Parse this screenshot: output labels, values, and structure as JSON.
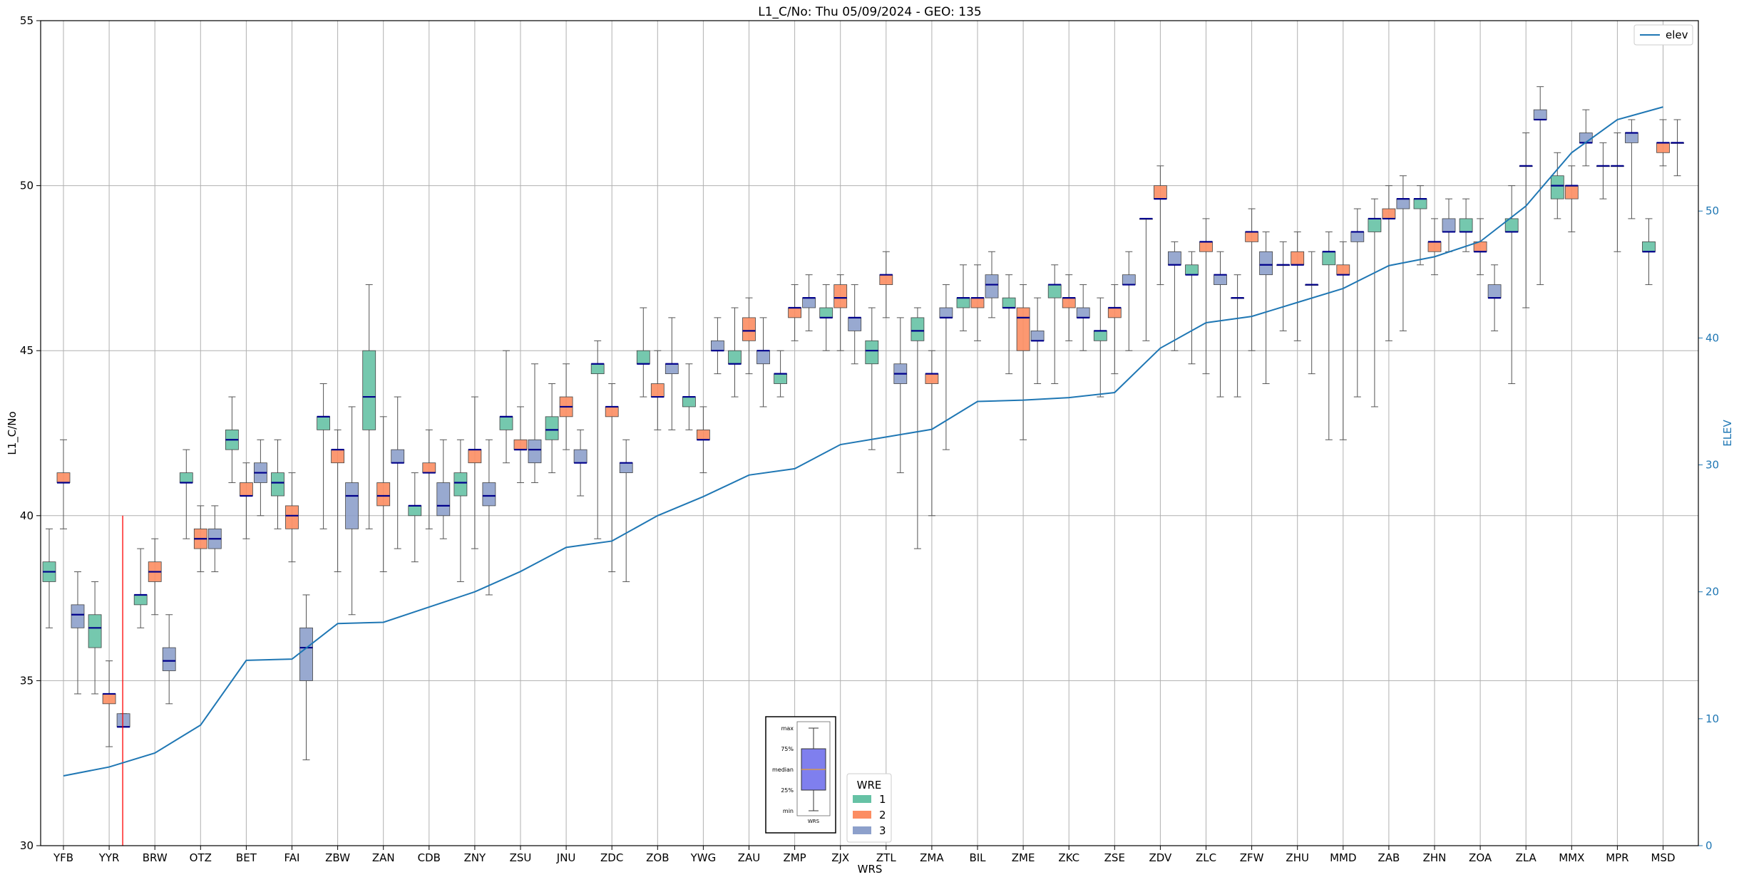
{
  "chart_data": {
    "type": "box",
    "title": "L1_C/No: Thu 05/09/2024 - GEO: 135",
    "xlabel": "WRS",
    "ylabel": "L1_C/No",
    "y2label": "ELEV",
    "ylim": [
      30,
      55
    ],
    "y2lim": [
      0,
      65
    ],
    "yticks": [
      30,
      35,
      40,
      45,
      50,
      55
    ],
    "y2ticks": [
      0,
      10,
      20,
      30,
      40,
      50
    ],
    "grid": true,
    "categories": [
      "YFB",
      "YYR",
      "BRW",
      "OTZ",
      "BET",
      "FAI",
      "ZBW",
      "ZAN",
      "CDB",
      "ZNY",
      "ZSU",
      "JNU",
      "ZDC",
      "ZOB",
      "YWG",
      "ZAU",
      "ZMP",
      "ZJX",
      "ZTL",
      "ZMA",
      "BIL",
      "ZME",
      "ZKC",
      "ZSE",
      "ZDV",
      "ZLC",
      "ZFW",
      "ZHU",
      "MMD",
      "ZAB",
      "ZHN",
      "ZOA",
      "ZLA",
      "MMX",
      "MPR",
      "MSD"
    ],
    "wre_colors": {
      "1": "#66c2a5",
      "2": "#fc8d62",
      "3": "#8da0cb"
    },
    "median_color": "#00008b",
    "line_color": "#1f77b4",
    "boxes": [
      {
        "cat": "YFB",
        "wre": 1,
        "min": 36.6,
        "q1": 38.0,
        "median": 38.3,
        "q3": 38.6,
        "max": 39.6
      },
      {
        "cat": "YFB",
        "wre": 2,
        "min": 39.6,
        "q1": 41.0,
        "median": 41.0,
        "q3": 41.3,
        "max": 42.3
      },
      {
        "cat": "YFB",
        "wre": 3,
        "min": 34.6,
        "q1": 36.6,
        "median": 37.0,
        "q3": 37.3,
        "max": 38.3
      },
      {
        "cat": "YYR",
        "wre": 1,
        "min": 34.6,
        "q1": 36.0,
        "median": 36.6,
        "q3": 37.0,
        "max": 38.0
      },
      {
        "cat": "YYR",
        "wre": 2,
        "min": 33.0,
        "q1": 34.3,
        "median": 34.6,
        "q3": 34.6,
        "max": 35.6
      },
      {
        "cat": "YYR",
        "wre": 3,
        "min": 33.6,
        "q1": 33.6,
        "median": 33.6,
        "q3": 34.0,
        "max": 34.0
      },
      {
        "cat": "BRW",
        "wre": 1,
        "min": 36.6,
        "q1": 37.3,
        "median": 37.6,
        "q3": 37.6,
        "max": 39.0
      },
      {
        "cat": "BRW",
        "wre": 2,
        "min": 37.0,
        "q1": 38.0,
        "median": 38.3,
        "q3": 38.6,
        "max": 39.3
      },
      {
        "cat": "BRW",
        "wre": 3,
        "min": 34.3,
        "q1": 35.3,
        "median": 35.6,
        "q3": 36.0,
        "max": 37.0
      },
      {
        "cat": "OTZ",
        "wre": 1,
        "min": 39.3,
        "q1": 41.0,
        "median": 41.0,
        "q3": 41.3,
        "max": 42.0
      },
      {
        "cat": "OTZ",
        "wre": 2,
        "min": 38.3,
        "q1": 39.0,
        "median": 39.3,
        "q3": 39.6,
        "max": 40.3
      },
      {
        "cat": "OTZ",
        "wre": 3,
        "min": 38.3,
        "q1": 39.0,
        "median": 39.3,
        "q3": 39.6,
        "max": 40.3
      },
      {
        "cat": "BET",
        "wre": 1,
        "min": 41.0,
        "q1": 42.0,
        "median": 42.3,
        "q3": 42.6,
        "max": 43.6
      },
      {
        "cat": "BET",
        "wre": 2,
        "min": 39.3,
        "q1": 40.6,
        "median": 40.6,
        "q3": 41.0,
        "max": 41.6
      },
      {
        "cat": "BET",
        "wre": 3,
        "min": 40.0,
        "q1": 41.0,
        "median": 41.3,
        "q3": 41.6,
        "max": 42.3
      },
      {
        "cat": "FAI",
        "wre": 1,
        "min": 39.6,
        "q1": 40.6,
        "median": 41.0,
        "q3": 41.3,
        "max": 42.3
      },
      {
        "cat": "FAI",
        "wre": 2,
        "min": 38.6,
        "q1": 39.6,
        "median": 40.0,
        "q3": 40.3,
        "max": 41.3
      },
      {
        "cat": "FAI",
        "wre": 3,
        "min": 32.6,
        "q1": 35.0,
        "median": 36.0,
        "q3": 36.6,
        "max": 37.6
      },
      {
        "cat": "ZBW",
        "wre": 1,
        "min": 39.6,
        "q1": 42.6,
        "median": 43.0,
        "q3": 43.0,
        "max": 44.0
      },
      {
        "cat": "ZBW",
        "wre": 2,
        "min": 38.3,
        "q1": 41.6,
        "median": 42.0,
        "q3": 42.0,
        "max": 42.6
      },
      {
        "cat": "ZBW",
        "wre": 3,
        "min": 37.0,
        "q1": 39.6,
        "median": 40.6,
        "q3": 41.0,
        "max": 43.3
      },
      {
        "cat": "ZAN",
        "wre": 1,
        "min": 39.6,
        "q1": 42.6,
        "median": 43.6,
        "q3": 45.0,
        "max": 47.0
      },
      {
        "cat": "ZAN",
        "wre": 2,
        "min": 38.3,
        "q1": 40.3,
        "median": 40.6,
        "q3": 41.0,
        "max": 43.0
      },
      {
        "cat": "ZAN",
        "wre": 3,
        "min": 39.0,
        "q1": 41.6,
        "median": 41.6,
        "q3": 42.0,
        "max": 43.6
      },
      {
        "cat": "CDB",
        "wre": 1,
        "min": 38.6,
        "q1": 40.0,
        "median": 40.3,
        "q3": 40.3,
        "max": 41.3
      },
      {
        "cat": "CDB",
        "wre": 2,
        "min": 39.6,
        "q1": 41.3,
        "median": 41.3,
        "q3": 41.6,
        "max": 42.6
      },
      {
        "cat": "CDB",
        "wre": 3,
        "min": 39.3,
        "q1": 40.0,
        "median": 40.3,
        "q3": 41.0,
        "max": 42.3
      },
      {
        "cat": "ZNY",
        "wre": 1,
        "min": 38.0,
        "q1": 40.6,
        "median": 41.0,
        "q3": 41.3,
        "max": 42.3
      },
      {
        "cat": "ZNY",
        "wre": 2,
        "min": 39.0,
        "q1": 41.6,
        "median": 42.0,
        "q3": 42.0,
        "max": 43.6
      },
      {
        "cat": "ZNY",
        "wre": 3,
        "min": 37.6,
        "q1": 40.3,
        "median": 40.6,
        "q3": 41.0,
        "max": 42.3
      },
      {
        "cat": "ZSU",
        "wre": 1,
        "min": 41.6,
        "q1": 42.6,
        "median": 43.0,
        "q3": 43.0,
        "max": 45.0
      },
      {
        "cat": "ZSU",
        "wre": 2,
        "min": 41.0,
        "q1": 42.0,
        "median": 42.0,
        "q3": 42.3,
        "max": 43.3
      },
      {
        "cat": "ZSU",
        "wre": 3,
        "min": 41.0,
        "q1": 41.6,
        "median": 42.0,
        "q3": 42.3,
        "max": 44.6
      },
      {
        "cat": "JNU",
        "wre": 1,
        "min": 41.3,
        "q1": 42.3,
        "median": 42.6,
        "q3": 43.0,
        "max": 44.0
      },
      {
        "cat": "JNU",
        "wre": 2,
        "min": 42.0,
        "q1": 43.0,
        "median": 43.3,
        "q3": 43.6,
        "max": 44.6
      },
      {
        "cat": "JNU",
        "wre": 3,
        "min": 40.6,
        "q1": 41.6,
        "median": 41.6,
        "q3": 42.0,
        "max": 42.6
      },
      {
        "cat": "ZDC",
        "wre": 1,
        "min": 39.3,
        "q1": 44.3,
        "median": 44.6,
        "q3": 44.6,
        "max": 45.3
      },
      {
        "cat": "ZDC",
        "wre": 2,
        "min": 38.3,
        "q1": 43.0,
        "median": 43.3,
        "q3": 43.3,
        "max": 44.0
      },
      {
        "cat": "ZDC",
        "wre": 3,
        "min": 38.0,
        "q1": 41.3,
        "median": 41.6,
        "q3": 41.6,
        "max": 42.3
      },
      {
        "cat": "ZOB",
        "wre": 1,
        "min": 43.6,
        "q1": 44.6,
        "median": 44.6,
        "q3": 45.0,
        "max": 46.3
      },
      {
        "cat": "ZOB",
        "wre": 2,
        "min": 42.6,
        "q1": 43.6,
        "median": 43.6,
        "q3": 44.0,
        "max": 45.0
      },
      {
        "cat": "ZOB",
        "wre": 3,
        "min": 42.6,
        "q1": 44.3,
        "median": 44.6,
        "q3": 44.6,
        "max": 46.0
      },
      {
        "cat": "YWG",
        "wre": 1,
        "min": 42.6,
        "q1": 43.3,
        "median": 43.6,
        "q3": 43.6,
        "max": 44.6
      },
      {
        "cat": "YWG",
        "wre": 2,
        "min": 41.3,
        "q1": 42.3,
        "median": 42.3,
        "q3": 42.6,
        "max": 43.3
      },
      {
        "cat": "YWG",
        "wre": 3,
        "min": 44.3,
        "q1": 45.0,
        "median": 45.0,
        "q3": 45.3,
        "max": 46.0
      },
      {
        "cat": "ZAU",
        "wre": 1,
        "min": 43.6,
        "q1": 44.6,
        "median": 44.6,
        "q3": 45.0,
        "max": 46.3
      },
      {
        "cat": "ZAU",
        "wre": 2,
        "min": 44.3,
        "q1": 45.3,
        "median": 45.6,
        "q3": 46.0,
        "max": 46.6
      },
      {
        "cat": "ZAU",
        "wre": 3,
        "min": 43.3,
        "q1": 44.6,
        "median": 45.0,
        "q3": 45.0,
        "max": 46.0
      },
      {
        "cat": "ZMP",
        "wre": 1,
        "min": 43.6,
        "q1": 44.0,
        "median": 44.3,
        "q3": 44.3,
        "max": 45.0
      },
      {
        "cat": "ZMP",
        "wre": 2,
        "min": 45.3,
        "q1": 46.0,
        "median": 46.3,
        "q3": 46.3,
        "max": 47.0
      },
      {
        "cat": "ZMP",
        "wre": 3,
        "min": 45.6,
        "q1": 46.3,
        "median": 46.6,
        "q3": 46.6,
        "max": 47.3
      },
      {
        "cat": "ZJX",
        "wre": 1,
        "min": 45.0,
        "q1": 46.0,
        "median": 46.0,
        "q3": 46.3,
        "max": 47.0
      },
      {
        "cat": "ZJX",
        "wre": 2,
        "min": 45.0,
        "q1": 46.3,
        "median": 46.6,
        "q3": 47.0,
        "max": 47.3
      },
      {
        "cat": "ZJX",
        "wre": 3,
        "min": 44.6,
        "q1": 45.6,
        "median": 46.0,
        "q3": 46.0,
        "max": 47.0
      },
      {
        "cat": "ZTL",
        "wre": 1,
        "min": 42.0,
        "q1": 44.6,
        "median": 45.0,
        "q3": 45.3,
        "max": 46.3
      },
      {
        "cat": "ZTL",
        "wre": 2,
        "min": 46.0,
        "q1": 47.0,
        "median": 47.3,
        "q3": 47.3,
        "max": 48.0
      },
      {
        "cat": "ZTL",
        "wre": 3,
        "min": 41.3,
        "q1": 44.0,
        "median": 44.3,
        "q3": 44.6,
        "max": 46.0
      },
      {
        "cat": "ZMA",
        "wre": 1,
        "min": 39.0,
        "q1": 45.3,
        "median": 45.6,
        "q3": 46.0,
        "max": 46.3
      },
      {
        "cat": "ZMA",
        "wre": 2,
        "min": 40.0,
        "q1": 44.0,
        "median": 44.3,
        "q3": 44.3,
        "max": 45.0
      },
      {
        "cat": "ZMA",
        "wre": 3,
        "min": 42.0,
        "q1": 46.0,
        "median": 46.0,
        "q3": 46.3,
        "max": 47.0
      },
      {
        "cat": "BIL",
        "wre": 1,
        "min": 45.6,
        "q1": 46.3,
        "median": 46.6,
        "q3": 46.6,
        "max": 47.6
      },
      {
        "cat": "BIL",
        "wre": 2,
        "min": 45.3,
        "q1": 46.3,
        "median": 46.6,
        "q3": 46.6,
        "max": 47.6
      },
      {
        "cat": "BIL",
        "wre": 3,
        "min": 46.0,
        "q1": 46.6,
        "median": 47.0,
        "q3": 47.3,
        "max": 48.0
      },
      {
        "cat": "ZME",
        "wre": 1,
        "min": 44.3,
        "q1": 46.3,
        "median": 46.3,
        "q3": 46.6,
        "max": 47.3
      },
      {
        "cat": "ZME",
        "wre": 2,
        "min": 42.3,
        "q1": 45.0,
        "median": 46.0,
        "q3": 46.3,
        "max": 47.0
      },
      {
        "cat": "ZME",
        "wre": 3,
        "min": 44.0,
        "q1": 45.3,
        "median": 45.3,
        "q3": 45.6,
        "max": 46.6
      },
      {
        "cat": "ZKC",
        "wre": 1,
        "min": 44.0,
        "q1": 46.6,
        "median": 47.0,
        "q3": 47.0,
        "max": 47.6
      },
      {
        "cat": "ZKC",
        "wre": 2,
        "min": 45.3,
        "q1": 46.3,
        "median": 46.6,
        "q3": 46.6,
        "max": 47.3
      },
      {
        "cat": "ZKC",
        "wre": 3,
        "min": 45.0,
        "q1": 46.0,
        "median": 46.0,
        "q3": 46.3,
        "max": 47.0
      },
      {
        "cat": "ZSE",
        "wre": 1,
        "min": 43.6,
        "q1": 45.3,
        "median": 45.6,
        "q3": 45.6,
        "max": 46.6
      },
      {
        "cat": "ZSE",
        "wre": 2,
        "min": 44.3,
        "q1": 46.0,
        "median": 46.3,
        "q3": 46.3,
        "max": 47.0
      },
      {
        "cat": "ZSE",
        "wre": 3,
        "min": 45.0,
        "q1": 47.0,
        "median": 47.0,
        "q3": 47.3,
        "max": 48.0
      },
      {
        "cat": "ZDV",
        "wre": 1,
        "min": 45.3,
        "q1": 49.0,
        "median": 49.0,
        "q3": 49.0,
        "max": 49.0
      },
      {
        "cat": "ZDV",
        "wre": 2,
        "min": 47.0,
        "q1": 49.6,
        "median": 49.6,
        "q3": 50.0,
        "max": 50.6
      },
      {
        "cat": "ZDV",
        "wre": 3,
        "min": 45.0,
        "q1": 47.6,
        "median": 47.6,
        "q3": 48.0,
        "max": 48.3
      },
      {
        "cat": "ZLC",
        "wre": 1,
        "min": 44.6,
        "q1": 47.3,
        "median": 47.3,
        "q3": 47.6,
        "max": 48.0
      },
      {
        "cat": "ZLC",
        "wre": 2,
        "min": 44.3,
        "q1": 48.0,
        "median": 48.3,
        "q3": 48.3,
        "max": 49.0
      },
      {
        "cat": "ZLC",
        "wre": 3,
        "min": 43.6,
        "q1": 47.0,
        "median": 47.3,
        "q3": 47.3,
        "max": 48.0
      },
      {
        "cat": "ZFW",
        "wre": 1,
        "min": 43.6,
        "q1": 46.6,
        "median": 46.6,
        "q3": 46.6,
        "max": 47.3
      },
      {
        "cat": "ZFW",
        "wre": 2,
        "min": 45.0,
        "q1": 48.3,
        "median": 48.6,
        "q3": 48.6,
        "max": 49.3
      },
      {
        "cat": "ZFW",
        "wre": 3,
        "min": 44.0,
        "q1": 47.3,
        "median": 47.6,
        "q3": 48.0,
        "max": 48.6
      },
      {
        "cat": "ZHU",
        "wre": 1,
        "min": 45.6,
        "q1": 47.6,
        "median": 47.6,
        "q3": 47.6,
        "max": 48.3
      },
      {
        "cat": "ZHU",
        "wre": 2,
        "min": 45.3,
        "q1": 47.6,
        "median": 47.6,
        "q3": 48.0,
        "max": 48.6
      },
      {
        "cat": "ZHU",
        "wre": 3,
        "min": 44.3,
        "q1": 47.0,
        "median": 47.0,
        "q3": 47.0,
        "max": 48.0
      },
      {
        "cat": "MMD",
        "wre": 1,
        "min": 42.3,
        "q1": 47.6,
        "median": 48.0,
        "q3": 48.0,
        "max": 48.6
      },
      {
        "cat": "MMD",
        "wre": 2,
        "min": 42.3,
        "q1": 47.3,
        "median": 47.3,
        "q3": 47.6,
        "max": 48.3
      },
      {
        "cat": "MMD",
        "wre": 3,
        "min": 43.6,
        "q1": 48.3,
        "median": 48.6,
        "q3": 48.6,
        "max": 49.3
      },
      {
        "cat": "ZAB",
        "wre": 1,
        "min": 43.3,
        "q1": 48.6,
        "median": 49.0,
        "q3": 49.0,
        "max": 49.6
      },
      {
        "cat": "ZAB",
        "wre": 2,
        "min": 45.3,
        "q1": 49.0,
        "median": 49.0,
        "q3": 49.3,
        "max": 50.0
      },
      {
        "cat": "ZAB",
        "wre": 3,
        "min": 45.6,
        "q1": 49.3,
        "median": 49.6,
        "q3": 49.6,
        "max": 50.3
      },
      {
        "cat": "ZHN",
        "wre": 1,
        "min": 47.6,
        "q1": 49.3,
        "median": 49.6,
        "q3": 49.6,
        "max": 50.0
      },
      {
        "cat": "ZHN",
        "wre": 2,
        "min": 47.3,
        "q1": 48.0,
        "median": 48.3,
        "q3": 48.3,
        "max": 49.0
      },
      {
        "cat": "ZHN",
        "wre": 3,
        "min": 48.0,
        "q1": 48.6,
        "median": 48.6,
        "q3": 49.0,
        "max": 49.6
      },
      {
        "cat": "ZOA",
        "wre": 1,
        "min": 48.0,
        "q1": 48.6,
        "median": 48.6,
        "q3": 49.0,
        "max": 49.6
      },
      {
        "cat": "ZOA",
        "wre": 2,
        "min": 47.3,
        "q1": 48.0,
        "median": 48.0,
        "q3": 48.3,
        "max": 49.0
      },
      {
        "cat": "ZOA",
        "wre": 3,
        "min": 45.6,
        "q1": 46.6,
        "median": 46.6,
        "q3": 47.0,
        "max": 47.6
      },
      {
        "cat": "ZLA",
        "wre": 1,
        "min": 44.0,
        "q1": 48.6,
        "median": 48.6,
        "q3": 49.0,
        "max": 50.0
      },
      {
        "cat": "ZLA",
        "wre": 2,
        "min": 46.3,
        "q1": 50.6,
        "median": 50.6,
        "q3": 50.6,
        "max": 51.6
      },
      {
        "cat": "ZLA",
        "wre": 3,
        "min": 47.0,
        "q1": 52.0,
        "median": 52.0,
        "q3": 52.3,
        "max": 53.0
      },
      {
        "cat": "MMX",
        "wre": 1,
        "min": 49.0,
        "q1": 49.6,
        "median": 50.0,
        "q3": 50.3,
        "max": 51.0
      },
      {
        "cat": "MMX",
        "wre": 2,
        "min": 48.6,
        "q1": 49.6,
        "median": 50.0,
        "q3": 50.0,
        "max": 50.6
      },
      {
        "cat": "MMX",
        "wre": 3,
        "min": 50.6,
        "q1": 51.3,
        "median": 51.3,
        "q3": 51.6,
        "max": 52.3
      },
      {
        "cat": "MPR",
        "wre": 1,
        "min": 49.6,
        "q1": 50.6,
        "median": 50.6,
        "q3": 50.6,
        "max": 51.3
      },
      {
        "cat": "MPR",
        "wre": 2,
        "min": 48.0,
        "q1": 50.6,
        "median": 50.6,
        "q3": 50.6,
        "max": 51.6
      },
      {
        "cat": "MPR",
        "wre": 3,
        "min": 49.0,
        "q1": 51.3,
        "median": 51.6,
        "q3": 51.6,
        "max": 52.0
      },
      {
        "cat": "MSD",
        "wre": 1,
        "min": 47.0,
        "q1": 48.0,
        "median": 48.0,
        "q3": 48.3,
        "max": 49.0
      },
      {
        "cat": "MSD",
        "wre": 2,
        "min": 50.6,
        "q1": 51.0,
        "median": 51.3,
        "q3": 51.3,
        "max": 52.0
      },
      {
        "cat": "MSD",
        "wre": 3,
        "min": 50.3,
        "q1": 51.3,
        "median": 51.3,
        "q3": 51.3,
        "max": 52.0
      }
    ],
    "outlier_lines": [
      {
        "cat": "YYR",
        "offset": 1,
        "from": 30,
        "to": 40,
        "color": "#ff0000"
      }
    ],
    "series": [
      {
        "name": "elev",
        "axis": "right",
        "values": [
          5.5,
          6.2,
          7.3,
          9.5,
          14.6,
          14.7,
          17.5,
          17.6,
          18.8,
          20.0,
          21.6,
          23.5,
          24.0,
          26.0,
          27.5,
          29.2,
          29.7,
          31.6,
          32.2,
          32.8,
          35.0,
          35.1,
          35.3,
          35.7,
          39.2,
          41.2,
          41.7,
          42.8,
          43.9,
          45.7,
          46.4,
          47.6,
          50.4,
          54.6,
          57.2,
          58.2
        ]
      }
    ],
    "legend": {
      "position": "top-right",
      "entries": [
        "elev"
      ]
    },
    "wre_legend": {
      "position": "bottom-center",
      "title": "WRE",
      "entries": [
        "1",
        "2",
        "3"
      ]
    },
    "key": {
      "position": "bottom-center",
      "labels": [
        "max",
        "75%",
        "median",
        "25%",
        "min"
      ],
      "xlabel": "WRS"
    }
  }
}
